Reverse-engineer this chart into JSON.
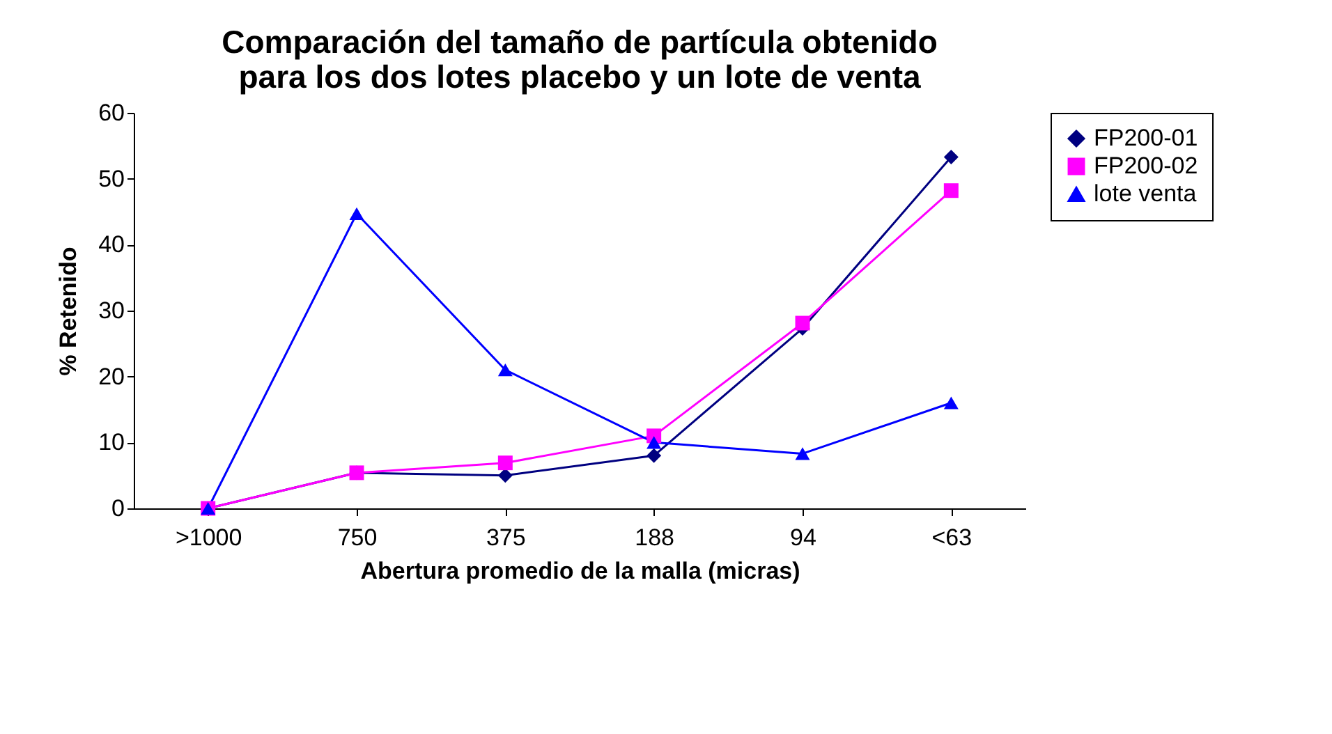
{
  "chart_data": {
    "type": "line",
    "title": "Comparación del tamaño de partícula obtenido\npara los dos lotes placebo y un lote de venta",
    "xlabel": "Abertura promedio de la malla (micras)",
    "ylabel": "% Retenido",
    "categories": [
      ">1000",
      "750",
      "375",
      "188",
      "94",
      "<63"
    ],
    "series": [
      {
        "name": "FP200-01",
        "color": "#000080",
        "marker": "diamond",
        "values": [
          0,
          5.4,
          5.0,
          8.0,
          27.3,
          53.3
        ]
      },
      {
        "name": "FP200-02",
        "color": "#ff00ff",
        "marker": "square",
        "values": [
          0,
          5.4,
          6.9,
          11.0,
          28.1,
          48.2
        ]
      },
      {
        "name": "lote venta",
        "color": "#0000ff",
        "marker": "triangle",
        "values": [
          0,
          44.7,
          21.0,
          10.0,
          8.3,
          16.0
        ]
      }
    ],
    "ylim": [
      0,
      60
    ],
    "yticks": [
      0,
      10,
      20,
      30,
      40,
      50,
      60
    ],
    "grid": false,
    "legend": "right",
    "line_style": "solid"
  }
}
